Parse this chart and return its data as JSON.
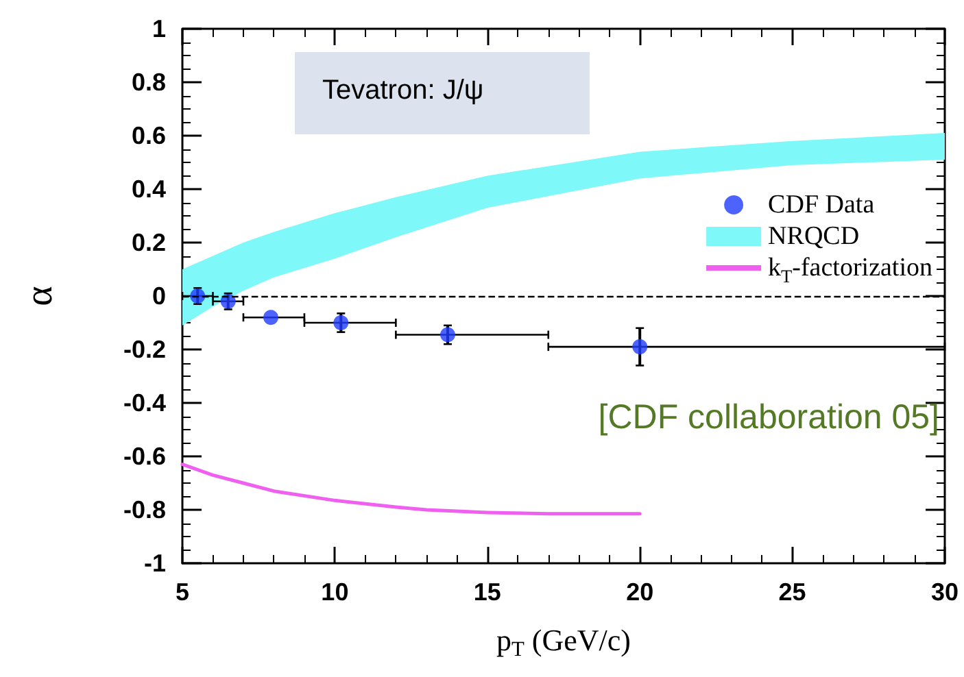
{
  "chart_data": {
    "type": "scatter",
    "xlabel": "p$_{T}$ (GeV/c)",
    "ylabel": "α",
    "annotations": [
      "Tevatron: J/ψ",
      "[CDF collaboration 05]"
    ],
    "xlim": [
      5,
      30
    ],
    "xticks": [
      5,
      10,
      15,
      20,
      25,
      30
    ],
    "ylim": [
      -1,
      1
    ],
    "yticks": [
      -1,
      -0.8,
      -0.6,
      -0.4,
      -0.2,
      0,
      0.2,
      0.4,
      0.6,
      0.8,
      1
    ],
    "legend": "top right",
    "grid": false,
    "ref_lines": [
      {
        "axis": "y",
        "value": 0,
        "label": null,
        "color": "#000000",
        "line_style": "dashed"
      }
    ],
    "series": [
      {
        "name": "CDF Data",
        "type": "scatter",
        "color": "#1f3cff",
        "marker": "circle",
        "x": [
          5.5,
          6.5,
          7.9,
          10.2,
          13.7,
          20
        ],
        "values": [
          0,
          -0.02,
          -0.08,
          -0.1,
          -0.145,
          -0.19
        ],
        "errors": [
          0.03,
          0.03,
          null,
          0.035,
          0.035,
          0.07
        ],
        "xerrors": [
          [
            5,
            6
          ],
          [
            6,
            7
          ],
          [
            7,
            9
          ],
          [
            9,
            12
          ],
          [
            12,
            17
          ],
          [
            17,
            30
          ]
        ]
      },
      {
        "name": "NRQCD",
        "type": "area",
        "color": "#7ef8f8",
        "x": [
          5,
          6,
          7,
          8,
          10,
          12,
          15,
          20,
          25,
          30
        ],
        "values": [
          null,
          null,
          null,
          null,
          null,
          null,
          null,
          null,
          null,
          null
        ],
        "lower": [
          -0.11,
          -0.04,
          0.02,
          0.07,
          0.14,
          0.22,
          0.33,
          0.44,
          0.49,
          0.51
        ],
        "upper": [
          0.1,
          0.15,
          0.2,
          0.24,
          0.31,
          0.37,
          0.45,
          0.54,
          0.58,
          0.61
        ]
      },
      {
        "name": "k$_{T}$-factorization",
        "type": "line",
        "color": "#f060f0",
        "marker": "none",
        "line_style": "solid",
        "x": [
          5,
          6,
          7,
          8,
          10,
          12,
          13,
          15,
          17,
          20
        ],
        "values": [
          -0.63,
          -0.67,
          -0.7,
          -0.73,
          -0.765,
          -0.79,
          -0.8,
          -0.81,
          -0.815,
          -0.815
        ]
      }
    ]
  }
}
